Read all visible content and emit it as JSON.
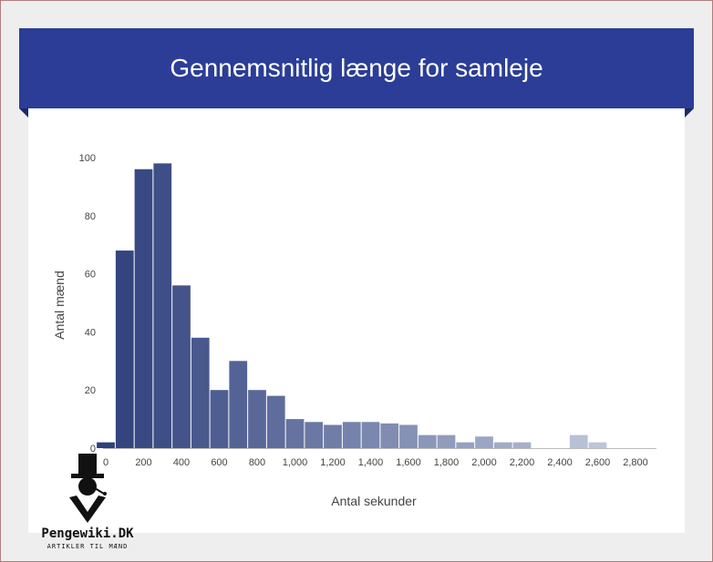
{
  "header": {
    "title": "Gennemsnitlig længe for samleje"
  },
  "chart_data": {
    "type": "bar",
    "title": "Gennemsnitlig længe for samleje",
    "xlabel": "Antal sekunder",
    "ylabel": "Antal mænd",
    "xlim": [
      0,
      2950
    ],
    "ylim": [
      0,
      100
    ],
    "bin_width": 100,
    "x_ticks": [
      0,
      200,
      400,
      600,
      800,
      1000,
      1200,
      1400,
      1600,
      1800,
      2000,
      2200,
      2400,
      2600,
      2800
    ],
    "x_tick_labels": [
      "0",
      "200",
      "400",
      "600",
      "800",
      "1,000",
      "1,200",
      "1,400",
      "1,600",
      "1,800",
      "2,000",
      "2,200",
      "2,400",
      "2,600",
      "2,800"
    ],
    "y_ticks": [
      0,
      20,
      40,
      60,
      80,
      100
    ],
    "grid": false,
    "bins": [
      {
        "x0": -50,
        "x1": 50,
        "value": 2
      },
      {
        "x0": 50,
        "x1": 150,
        "value": 68
      },
      {
        "x0": 150,
        "x1": 250,
        "value": 96
      },
      {
        "x0": 250,
        "x1": 350,
        "value": 98
      },
      {
        "x0": 350,
        "x1": 450,
        "value": 56
      },
      {
        "x0": 450,
        "x1": 550,
        "value": 38
      },
      {
        "x0": 550,
        "x1": 650,
        "value": 20
      },
      {
        "x0": 650,
        "x1": 750,
        "value": 30
      },
      {
        "x0": 750,
        "x1": 850,
        "value": 20
      },
      {
        "x0": 850,
        "x1": 950,
        "value": 18
      },
      {
        "x0": 950,
        "x1": 1050,
        "value": 10
      },
      {
        "x0": 1050,
        "x1": 1150,
        "value": 9
      },
      {
        "x0": 1150,
        "x1": 1250,
        "value": 8
      },
      {
        "x0": 1250,
        "x1": 1350,
        "value": 9
      },
      {
        "x0": 1350,
        "x1": 1450,
        "value": 9
      },
      {
        "x0": 1450,
        "x1": 1550,
        "value": 8.5
      },
      {
        "x0": 1550,
        "x1": 1650,
        "value": 8
      },
      {
        "x0": 1650,
        "x1": 1750,
        "value": 4.5
      },
      {
        "x0": 1750,
        "x1": 1850,
        "value": 4.5
      },
      {
        "x0": 1850,
        "x1": 1950,
        "value": 2
      },
      {
        "x0": 1950,
        "x1": 2050,
        "value": 4
      },
      {
        "x0": 2050,
        "x1": 2150,
        "value": 2
      },
      {
        "x0": 2150,
        "x1": 2250,
        "value": 2
      },
      {
        "x0": 2450,
        "x1": 2550,
        "value": 4.5
      },
      {
        "x0": 2550,
        "x1": 2650,
        "value": 2
      }
    ],
    "colors": {
      "dark": "#2e3f7c",
      "light": "#bcc5d9",
      "axis": "#bbbbbb"
    }
  },
  "branding": {
    "name": "Pengewiki.DK",
    "tagline": "ARTIKLER TIL MÆND"
  }
}
